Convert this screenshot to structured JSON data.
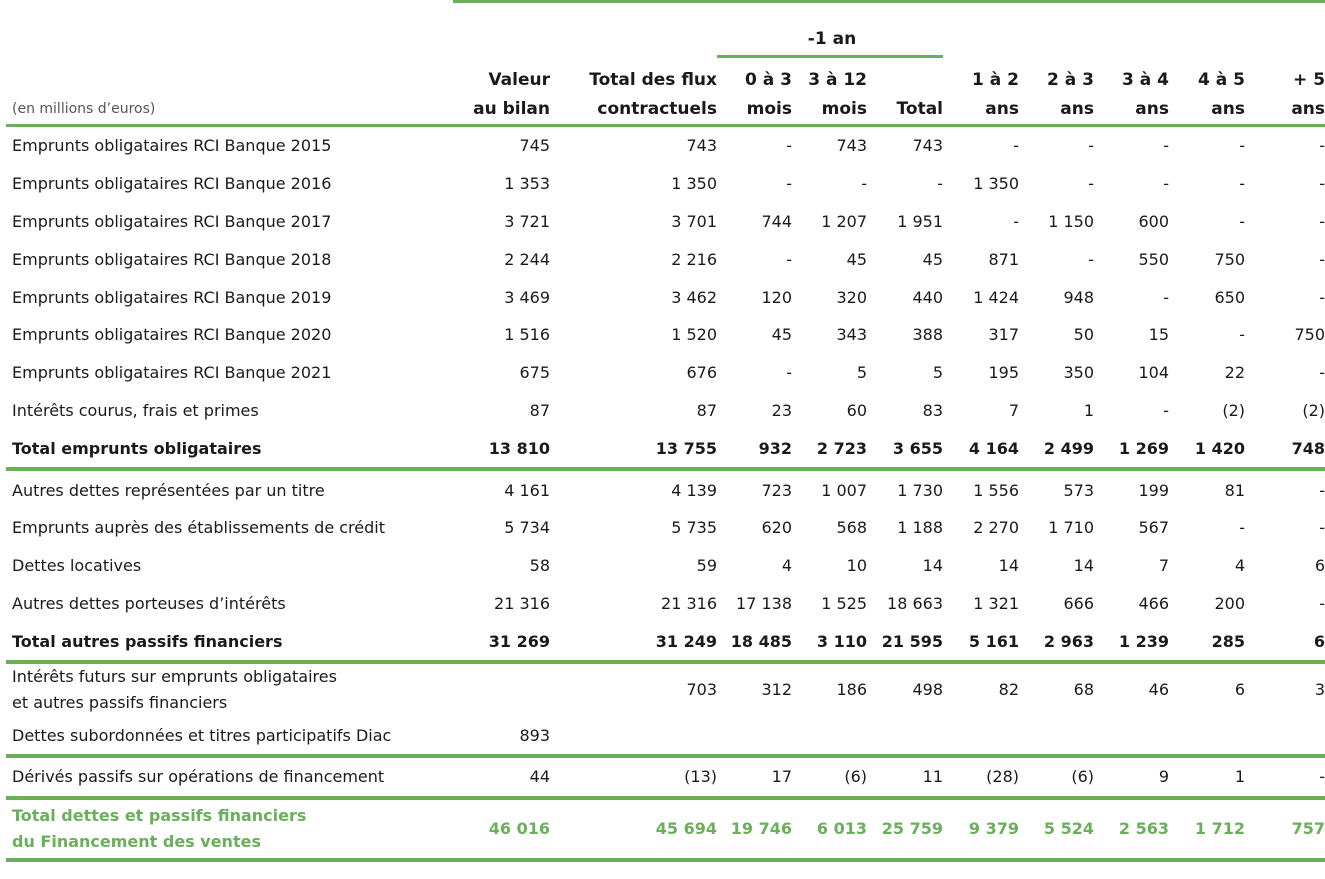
{
  "header": {
    "unit_note": "(en millions d’euros)",
    "group_label": "-1 an",
    "columns": [
      {
        "l1": "Valeur",
        "l2": "au bilan"
      },
      {
        "l1": "Total des flux",
        "l2": "contractuels"
      },
      {
        "l1": "0 à 3",
        "l2": "mois"
      },
      {
        "l1": "3 à 12",
        "l2": "mois"
      },
      {
        "l1": "",
        "l2": "Total"
      },
      {
        "l1": "1 à 2",
        "l2": "ans"
      },
      {
        "l1": "2 à 3",
        "l2": "ans"
      },
      {
        "l1": "3 à 4",
        "l2": "ans"
      },
      {
        "l1": "4 à 5",
        "l2": "ans"
      },
      {
        "l1": "+ 5",
        "l2": "ans"
      }
    ]
  },
  "rows": [
    {
      "label": "Emprunts obligataires RCI Banque 2015",
      "v": [
        "745",
        "743",
        "-",
        "743",
        "743",
        "-",
        "-",
        "-",
        "-",
        "-"
      ]
    },
    {
      "label": "Emprunts obligataires RCI Banque 2016",
      "v": [
        "1 353",
        "1 350",
        "-",
        "-",
        "-",
        "1 350",
        "-",
        "-",
        "-",
        "-"
      ]
    },
    {
      "label": "Emprunts obligataires RCI Banque 2017",
      "v": [
        "3 721",
        "3 701",
        "744",
        "1 207",
        "1 951",
        "-",
        "1 150",
        "600",
        "-",
        "-"
      ]
    },
    {
      "label": "Emprunts obligataires RCI Banque 2018",
      "v": [
        "2 244",
        "2 216",
        "-",
        "45",
        "45",
        "871",
        "-",
        "550",
        "750",
        "-"
      ]
    },
    {
      "label": "Emprunts obligataires RCI Banque 2019",
      "v": [
        "3 469",
        "3 462",
        "120",
        "320",
        "440",
        "1 424",
        "948",
        "-",
        "650",
        "-"
      ]
    },
    {
      "label": "Emprunts obligataires RCI Banque 2020",
      "v": [
        "1 516",
        "1 520",
        "45",
        "343",
        "388",
        "317",
        "50",
        "15",
        "-",
        "750"
      ]
    },
    {
      "label": "Emprunts obligataires RCI Banque 2021",
      "v": [
        "675",
        "676",
        "-",
        "5",
        "5",
        "195",
        "350",
        "104",
        "22",
        "-"
      ]
    },
    {
      "label": "Intérêts courus, frais et primes",
      "v": [
        "87",
        "87",
        "23",
        "60",
        "83",
        "7",
        "1",
        "-",
        "(2)",
        "(2)"
      ]
    },
    {
      "label": "Total emprunts obligataires",
      "v": [
        "13 810",
        "13 755",
        "932",
        "2 723",
        "3 655",
        "4 164",
        "2 499",
        "1 269",
        "1 420",
        "748"
      ]
    },
    {
      "label": "Autres dettes représentées par un titre",
      "v": [
        "4 161",
        "4 139",
        "723",
        "1 007",
        "1 730",
        "1 556",
        "573",
        "199",
        "81",
        "-"
      ]
    },
    {
      "label": "Emprunts auprès des établissements de crédit",
      "v": [
        "5 734",
        "5 735",
        "620",
        "568",
        "1 188",
        "2 270",
        "1 710",
        "567",
        "-",
        "-"
      ]
    },
    {
      "label": "Dettes locatives",
      "v": [
        "58",
        "59",
        "4",
        "10",
        "14",
        "14",
        "14",
        "7",
        "4",
        "6"
      ]
    },
    {
      "label": "Autres dettes porteuses d’intérêts",
      "v": [
        "21 316",
        "21 316",
        "17 138",
        "1 525",
        "18 663",
        "1 321",
        "666",
        "466",
        "200",
        "-"
      ]
    },
    {
      "label": "Total autres passifs financiers",
      "v": [
        "31 269",
        "31 249",
        "18 485",
        "3 110",
        "21 595",
        "5 161",
        "2 963",
        "1 239",
        "285",
        "6"
      ]
    },
    {
      "label": "Intérêts futurs sur emprunts obligataires",
      "label2": "et autres passifs financiers",
      "v": [
        "",
        "703",
        "312",
        "186",
        "498",
        "82",
        "68",
        "46",
        "6",
        "3"
      ]
    },
    {
      "label": "Dettes subordonnées et titres participatifs Diac",
      "v": [
        "893",
        "",
        "",
        "",
        "",
        "",
        "",
        "",
        "",
        ""
      ]
    },
    {
      "label": "Dérivés passifs sur opérations de financement",
      "v": [
        "44",
        "(13)",
        "17",
        "(6)",
        "11",
        "(28)",
        "(6)",
        "9",
        "1",
        "-"
      ]
    },
    {
      "label": "Total dettes et passifs financiers",
      "label2": "du Financement des ventes",
      "v": [
        "46 016",
        "45 694",
        "19 746",
        "6 013",
        "25 759",
        "9 379",
        "5 524",
        "2 563",
        "1 712",
        "757"
      ]
    }
  ]
}
